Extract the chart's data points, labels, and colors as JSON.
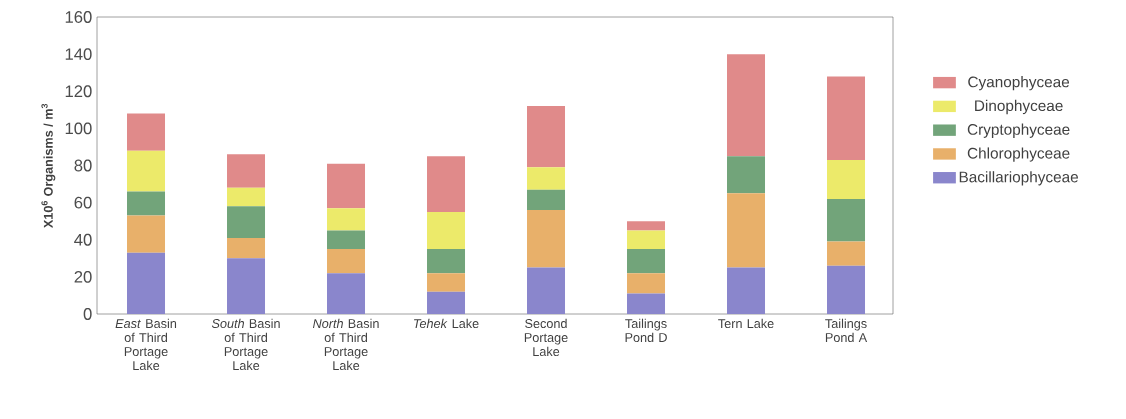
{
  "chart_data": {
    "type": "bar",
    "stacked": true,
    "ylabel": "X10$^{6}$ Organisms / m$^{3}$",
    "categories": [
      "*East* Basin of Third Portage Lake",
      "*South* Basin of Third Portage Lake",
      "*North* Basin of Third Portage Lake",
      "*Tehek* Lake",
      "Second Portage Lake",
      "Tailings Pond D",
      "Tern Lake",
      "Tailings Pond A"
    ],
    "series": [
      {
        "name": "Bacillariophyceae",
        "color": "#8a86cc",
        "values": [
          33,
          30,
          22,
          12,
          25,
          11,
          25,
          26
        ]
      },
      {
        "name": "Chlorophyceae",
        "color": "#e8b06a",
        "values": [
          20,
          11,
          13,
          10,
          31,
          11,
          40,
          13
        ]
      },
      {
        "name": "Cryptophyceae",
        "color": "#72a47a",
        "values": [
          13,
          17,
          10,
          13,
          11,
          13,
          20,
          23
        ]
      },
      {
        "name": "Dinophyceae",
        "color": "#ecea6a",
        "values": [
          22,
          10,
          12,
          20,
          12,
          10,
          0,
          21
        ]
      },
      {
        "name": "Cyanophyceae",
        "color": "#e08a8a",
        "values": [
          20,
          18,
          24,
          30,
          33,
          5,
          55,
          45
        ]
      }
    ],
    "ylim": [
      0,
      160
    ],
    "yticks": [
      0,
      20,
      40,
      60,
      80,
      100,
      120,
      140,
      160
    ],
    "grid": false,
    "legend": "right"
  }
}
